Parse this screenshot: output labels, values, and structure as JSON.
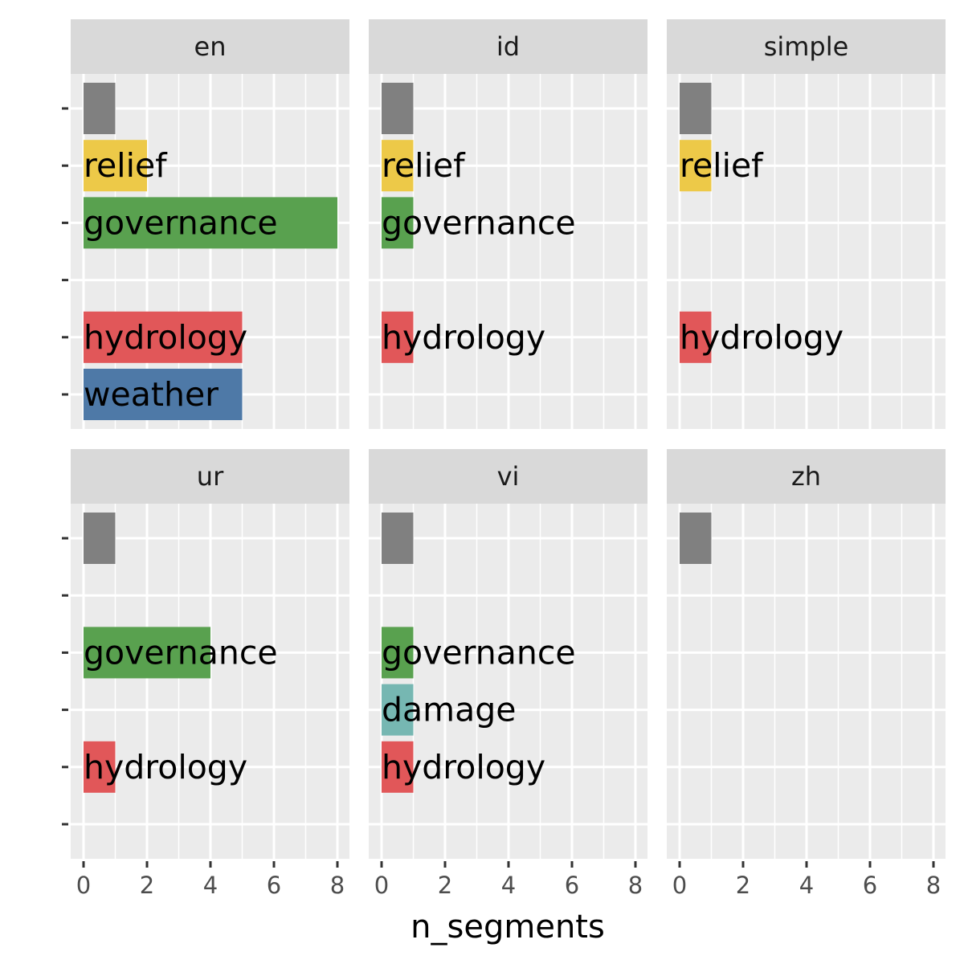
{
  "chart_data": {
    "type": "bar",
    "orientation": "horizontal",
    "facet_by": [
      "en",
      "id",
      "simple",
      "ur",
      "vi",
      "zh"
    ],
    "xlabel": "n_segments",
    "ylabel": "",
    "xlim": [
      0,
      8.3
    ],
    "x_ticks": [
      0,
      2,
      4,
      6,
      8
    ],
    "grid": true,
    "colors": {
      "other": "#808080",
      "relief": "#EDC948",
      "governance": "#59A14F",
      "hydrology": "#E15759",
      "weather": "#4E79A7",
      "damage": "#76B7B2"
    },
    "panels": [
      {
        "facet": "en",
        "slots": 6,
        "bars": [
          {
            "slot": 0,
            "label": "",
            "color_key": "other",
            "value": 1
          },
          {
            "slot": 1,
            "label": "relief",
            "color_key": "relief",
            "value": 2
          },
          {
            "slot": 2,
            "label": "governance",
            "color_key": "governance",
            "value": 8
          },
          {
            "slot": 4,
            "label": "hydrology",
            "color_key": "hydrology",
            "value": 5
          },
          {
            "slot": 5,
            "label": "weather",
            "color_key": "weather",
            "value": 5
          }
        ]
      },
      {
        "facet": "id",
        "slots": 6,
        "bars": [
          {
            "slot": 0,
            "label": "",
            "color_key": "other",
            "value": 1
          },
          {
            "slot": 1,
            "label": "relief",
            "color_key": "relief",
            "value": 1
          },
          {
            "slot": 2,
            "label": "governance",
            "color_key": "governance",
            "value": 1
          },
          {
            "slot": 4,
            "label": "hydrology",
            "color_key": "hydrology",
            "value": 1
          }
        ]
      },
      {
        "facet": "simple",
        "slots": 6,
        "bars": [
          {
            "slot": 0,
            "label": "",
            "color_key": "other",
            "value": 1
          },
          {
            "slot": 1,
            "label": "relief",
            "color_key": "relief",
            "value": 1
          },
          {
            "slot": 4,
            "label": "hydrology",
            "color_key": "hydrology",
            "value": 1
          }
        ]
      },
      {
        "facet": "ur",
        "slots": 6,
        "bars": [
          {
            "slot": 0,
            "label": "",
            "color_key": "other",
            "value": 1
          },
          {
            "slot": 2,
            "label": "governance",
            "color_key": "governance",
            "value": 4
          },
          {
            "slot": 4,
            "label": "hydrology",
            "color_key": "hydrology",
            "value": 1
          }
        ]
      },
      {
        "facet": "vi",
        "slots": 6,
        "bars": [
          {
            "slot": 0,
            "label": "",
            "color_key": "other",
            "value": 1
          },
          {
            "slot": 2,
            "label": "governance",
            "color_key": "governance",
            "value": 1
          },
          {
            "slot": 3,
            "label": "damage",
            "color_key": "damage",
            "value": 1
          },
          {
            "slot": 4,
            "label": "hydrology",
            "color_key": "hydrology",
            "value": 1
          }
        ]
      },
      {
        "facet": "zh",
        "slots": 6,
        "bars": [
          {
            "slot": 0,
            "label": "",
            "color_key": "other",
            "value": 1
          }
        ]
      }
    ]
  },
  "style": {
    "panel_background": "#EBEBEB",
    "strip_background": "#D9D9D9",
    "grid_color": "#FFFFFF",
    "tick_color": "#333333"
  }
}
